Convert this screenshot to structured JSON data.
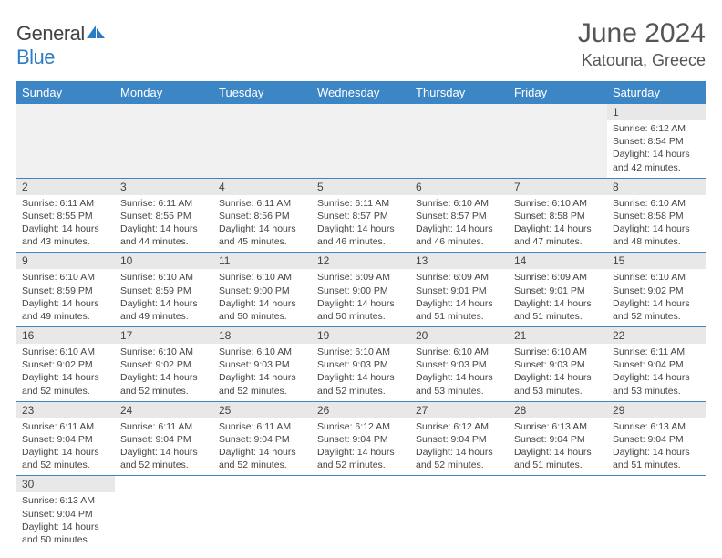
{
  "brand": {
    "part1": "General",
    "part2": "Blue"
  },
  "title": "June 2024",
  "location": "Katouna, Greece",
  "accent_color": "#3d86c6",
  "daynum_bg": "#e8e8e8",
  "days_of_week": [
    "Sunday",
    "Monday",
    "Tuesday",
    "Wednesday",
    "Thursday",
    "Friday",
    "Saturday"
  ],
  "weeks": [
    [
      null,
      null,
      null,
      null,
      null,
      null,
      {
        "n": "1",
        "sr": "Sunrise: 6:12 AM",
        "ss": "Sunset: 8:54 PM",
        "dl1": "Daylight: 14 hours",
        "dl2": "and 42 minutes."
      }
    ],
    [
      {
        "n": "2",
        "sr": "Sunrise: 6:11 AM",
        "ss": "Sunset: 8:55 PM",
        "dl1": "Daylight: 14 hours",
        "dl2": "and 43 minutes."
      },
      {
        "n": "3",
        "sr": "Sunrise: 6:11 AM",
        "ss": "Sunset: 8:55 PM",
        "dl1": "Daylight: 14 hours",
        "dl2": "and 44 minutes."
      },
      {
        "n": "4",
        "sr": "Sunrise: 6:11 AM",
        "ss": "Sunset: 8:56 PM",
        "dl1": "Daylight: 14 hours",
        "dl2": "and 45 minutes."
      },
      {
        "n": "5",
        "sr": "Sunrise: 6:11 AM",
        "ss": "Sunset: 8:57 PM",
        "dl1": "Daylight: 14 hours",
        "dl2": "and 46 minutes."
      },
      {
        "n": "6",
        "sr": "Sunrise: 6:10 AM",
        "ss": "Sunset: 8:57 PM",
        "dl1": "Daylight: 14 hours",
        "dl2": "and 46 minutes."
      },
      {
        "n": "7",
        "sr": "Sunrise: 6:10 AM",
        "ss": "Sunset: 8:58 PM",
        "dl1": "Daylight: 14 hours",
        "dl2": "and 47 minutes."
      },
      {
        "n": "8",
        "sr": "Sunrise: 6:10 AM",
        "ss": "Sunset: 8:58 PM",
        "dl1": "Daylight: 14 hours",
        "dl2": "and 48 minutes."
      }
    ],
    [
      {
        "n": "9",
        "sr": "Sunrise: 6:10 AM",
        "ss": "Sunset: 8:59 PM",
        "dl1": "Daylight: 14 hours",
        "dl2": "and 49 minutes."
      },
      {
        "n": "10",
        "sr": "Sunrise: 6:10 AM",
        "ss": "Sunset: 8:59 PM",
        "dl1": "Daylight: 14 hours",
        "dl2": "and 49 minutes."
      },
      {
        "n": "11",
        "sr": "Sunrise: 6:10 AM",
        "ss": "Sunset: 9:00 PM",
        "dl1": "Daylight: 14 hours",
        "dl2": "and 50 minutes."
      },
      {
        "n": "12",
        "sr": "Sunrise: 6:09 AM",
        "ss": "Sunset: 9:00 PM",
        "dl1": "Daylight: 14 hours",
        "dl2": "and 50 minutes."
      },
      {
        "n": "13",
        "sr": "Sunrise: 6:09 AM",
        "ss": "Sunset: 9:01 PM",
        "dl1": "Daylight: 14 hours",
        "dl2": "and 51 minutes."
      },
      {
        "n": "14",
        "sr": "Sunrise: 6:09 AM",
        "ss": "Sunset: 9:01 PM",
        "dl1": "Daylight: 14 hours",
        "dl2": "and 51 minutes."
      },
      {
        "n": "15",
        "sr": "Sunrise: 6:10 AM",
        "ss": "Sunset: 9:02 PM",
        "dl1": "Daylight: 14 hours",
        "dl2": "and 52 minutes."
      }
    ],
    [
      {
        "n": "16",
        "sr": "Sunrise: 6:10 AM",
        "ss": "Sunset: 9:02 PM",
        "dl1": "Daylight: 14 hours",
        "dl2": "and 52 minutes."
      },
      {
        "n": "17",
        "sr": "Sunrise: 6:10 AM",
        "ss": "Sunset: 9:02 PM",
        "dl1": "Daylight: 14 hours",
        "dl2": "and 52 minutes."
      },
      {
        "n": "18",
        "sr": "Sunrise: 6:10 AM",
        "ss": "Sunset: 9:03 PM",
        "dl1": "Daylight: 14 hours",
        "dl2": "and 52 minutes."
      },
      {
        "n": "19",
        "sr": "Sunrise: 6:10 AM",
        "ss": "Sunset: 9:03 PM",
        "dl1": "Daylight: 14 hours",
        "dl2": "and 52 minutes."
      },
      {
        "n": "20",
        "sr": "Sunrise: 6:10 AM",
        "ss": "Sunset: 9:03 PM",
        "dl1": "Daylight: 14 hours",
        "dl2": "and 53 minutes."
      },
      {
        "n": "21",
        "sr": "Sunrise: 6:10 AM",
        "ss": "Sunset: 9:03 PM",
        "dl1": "Daylight: 14 hours",
        "dl2": "and 53 minutes."
      },
      {
        "n": "22",
        "sr": "Sunrise: 6:11 AM",
        "ss": "Sunset: 9:04 PM",
        "dl1": "Daylight: 14 hours",
        "dl2": "and 53 minutes."
      }
    ],
    [
      {
        "n": "23",
        "sr": "Sunrise: 6:11 AM",
        "ss": "Sunset: 9:04 PM",
        "dl1": "Daylight: 14 hours",
        "dl2": "and 52 minutes."
      },
      {
        "n": "24",
        "sr": "Sunrise: 6:11 AM",
        "ss": "Sunset: 9:04 PM",
        "dl1": "Daylight: 14 hours",
        "dl2": "and 52 minutes."
      },
      {
        "n": "25",
        "sr": "Sunrise: 6:11 AM",
        "ss": "Sunset: 9:04 PM",
        "dl1": "Daylight: 14 hours",
        "dl2": "and 52 minutes."
      },
      {
        "n": "26",
        "sr": "Sunrise: 6:12 AM",
        "ss": "Sunset: 9:04 PM",
        "dl1": "Daylight: 14 hours",
        "dl2": "and 52 minutes."
      },
      {
        "n": "27",
        "sr": "Sunrise: 6:12 AM",
        "ss": "Sunset: 9:04 PM",
        "dl1": "Daylight: 14 hours",
        "dl2": "and 52 minutes."
      },
      {
        "n": "28",
        "sr": "Sunrise: 6:13 AM",
        "ss": "Sunset: 9:04 PM",
        "dl1": "Daylight: 14 hours",
        "dl2": "and 51 minutes."
      },
      {
        "n": "29",
        "sr": "Sunrise: 6:13 AM",
        "ss": "Sunset: 9:04 PM",
        "dl1": "Daylight: 14 hours",
        "dl2": "and 51 minutes."
      }
    ],
    [
      {
        "n": "30",
        "sr": "Sunrise: 6:13 AM",
        "ss": "Sunset: 9:04 PM",
        "dl1": "Daylight: 14 hours",
        "dl2": "and 50 minutes."
      },
      null,
      null,
      null,
      null,
      null,
      null
    ]
  ]
}
